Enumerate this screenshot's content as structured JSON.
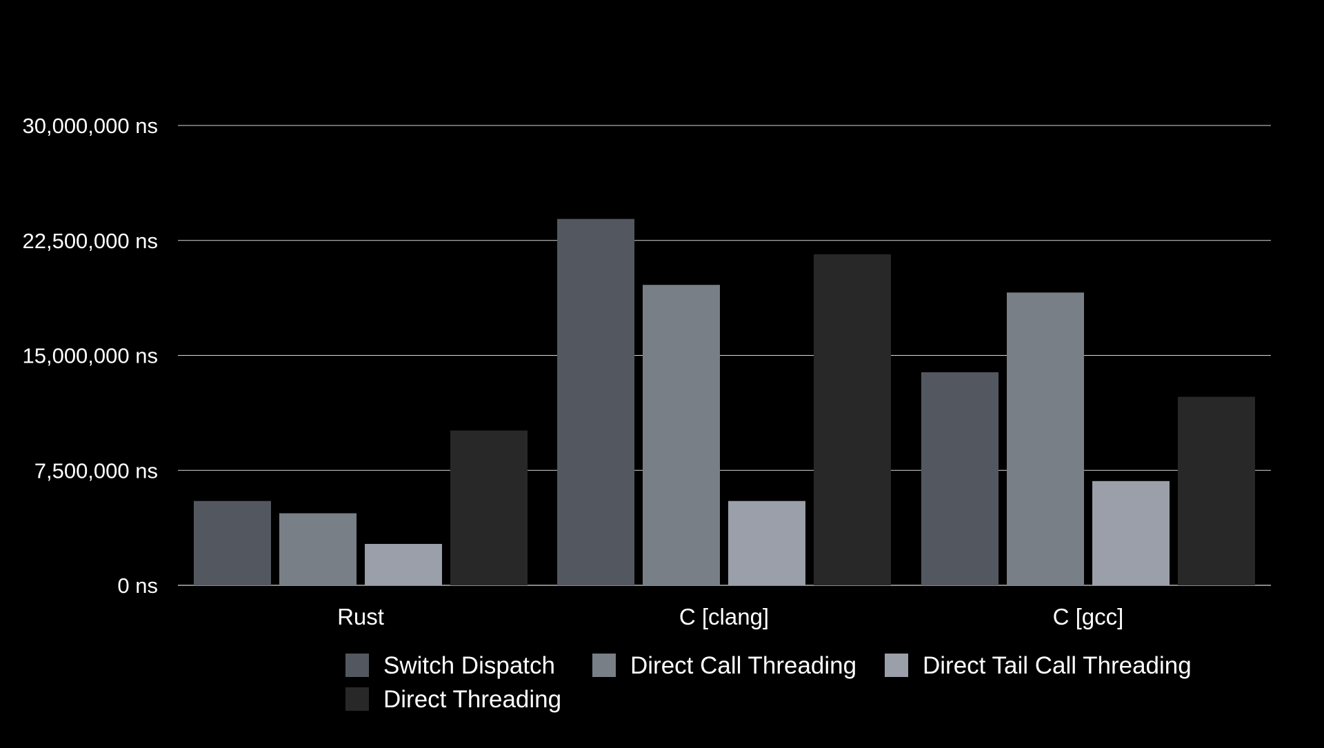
{
  "chart_data": {
    "type": "bar",
    "title": "",
    "xlabel": "",
    "ylabel": "",
    "categories": [
      "Rust",
      "C [clang]",
      "C [gcc]"
    ],
    "series": [
      {
        "name": "Switch Dispatch",
        "color": "#535860",
        "values": [
          5500000,
          23900000,
          13900000
        ]
      },
      {
        "name": "Direct Call Threading",
        "color": "#797f87",
        "values": [
          4700000,
          19600000,
          19100000
        ]
      },
      {
        "name": "Direct Tail Call Threading",
        "color": "#9a9fa9",
        "values": [
          2700000,
          5500000,
          6800000
        ]
      },
      {
        "name": "Direct Threading",
        "color": "#282828",
        "values": [
          10100000,
          21600000,
          12300000
        ]
      }
    ],
    "ylim": [
      0,
      30000000
    ],
    "y_ticks": [
      0,
      7500000,
      15000000,
      22500000,
      30000000
    ],
    "y_tick_labels": [
      "0 ns",
      "7,500,000 ns",
      "15,000,000 ns",
      "22,500,000 ns",
      "30,000,000 ns"
    ],
    "grid": true,
    "grid_color": "#ffffff",
    "background": "#000000",
    "legend": "bottom"
  }
}
